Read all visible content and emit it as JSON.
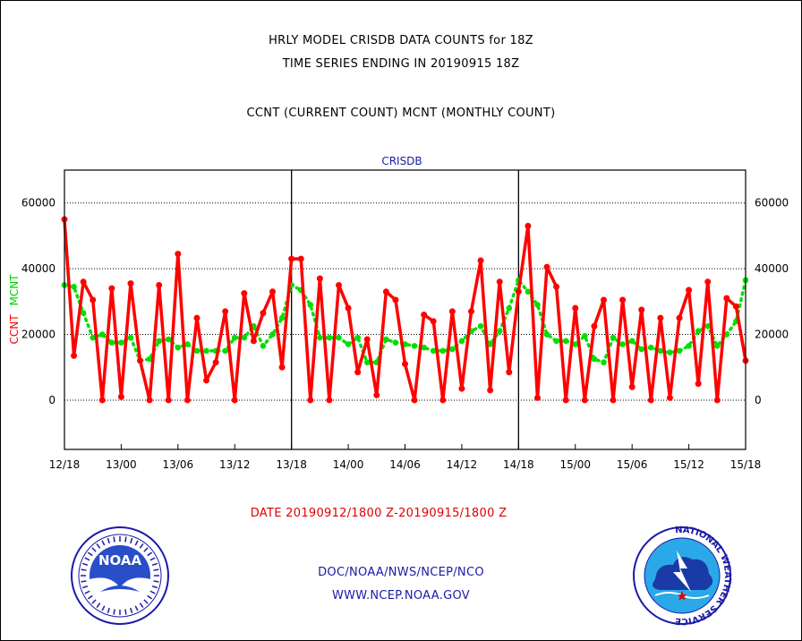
{
  "header": {
    "line1": "HRLY MODEL CRISDB DATA COUNTS for 18Z",
    "line2": "TIME SERIES ENDING IN 20190915 18Z",
    "line3": "CCNT (CURRENT COUNT) MCNT (MONTHLY COUNT)"
  },
  "footer": {
    "date_range": "DATE 20190912/1800 Z-20190915/1800 Z",
    "org": "DOC/NOAA/NWS/NCEP/NCO",
    "url": "WWW.NCEP.NOAA.GOV"
  },
  "logos": {
    "left": "NOAA",
    "right": "NATIONAL WEATHER SERVICE"
  },
  "colors": {
    "ccnt": "#ff0000",
    "mcnt": "#00e000",
    "title": "#1a1aa8"
  },
  "chart_data": {
    "type": "line",
    "title": "CRISDB",
    "ylabel_ccnt": "CCNT",
    "ylabel_mcnt": "MCNT",
    "ylim": [
      -15000,
      70000
    ],
    "yticks": [
      0,
      20000,
      40000,
      60000
    ],
    "ytick_labels": [
      "0",
      "20000",
      "40000",
      "60000"
    ],
    "xlim": [
      0,
      72
    ],
    "xticks": [
      0,
      6,
      12,
      18,
      24,
      30,
      36,
      42,
      48,
      54,
      60,
      66,
      72
    ],
    "xtick_labels": [
      "12/18",
      "13/00",
      "13/06",
      "13/12",
      "13/18",
      "14/00",
      "14/06",
      "14/12",
      "14/18",
      "15/00",
      "15/06",
      "15/12",
      "15/18"
    ],
    "day_boundaries": [
      24,
      48
    ],
    "grid": "horizontal dotted",
    "series": [
      {
        "name": "CCNT",
        "values": [
          55000,
          13500,
          36000,
          30500,
          0,
          34000,
          1000,
          35500,
          12000,
          0,
          35000,
          0,
          44500,
          0,
          25000,
          6000,
          11500,
          27000,
          0,
          32500,
          18000,
          26500,
          33000,
          10000,
          43000,
          43000,
          0,
          37000,
          0,
          35000,
          28000,
          8500,
          18500,
          1500,
          33000,
          30500,
          11000,
          0,
          26000,
          24000,
          0,
          27000,
          3500,
          27000,
          42500,
          3000,
          36000,
          8500,
          33000,
          53000,
          700,
          40500,
          34500,
          0,
          28000,
          0,
          22500,
          30500,
          0,
          30500,
          4000,
          27500,
          0,
          25000,
          700,
          25000,
          33500,
          5000,
          36000,
          0,
          31000,
          28500,
          12000
        ]
      },
      {
        "name": "MCNT",
        "values": [
          35000,
          34500,
          26500,
          19000,
          20000,
          17500,
          17500,
          19000,
          12000,
          12500,
          18000,
          18500,
          16000,
          17000,
          15000,
          15000,
          15000,
          15000,
          19000,
          19000,
          22500,
          16500,
          20000,
          25000,
          35000,
          33500,
          29000,
          19000,
          19000,
          19000,
          17000,
          19000,
          11500,
          11500,
          18500,
          17500,
          17000,
          16500,
          16000,
          15000,
          15000,
          15500,
          18000,
          21000,
          22500,
          17000,
          21000,
          28000,
          36500,
          33000,
          29000,
          20000,
          18000,
          18000,
          17000,
          19500,
          12500,
          11500,
          19000,
          17000,
          18000,
          15500,
          16000,
          15000,
          14500,
          15000,
          16500,
          21000,
          22500,
          16500,
          20000,
          24000,
          36500
        ]
      }
    ]
  }
}
